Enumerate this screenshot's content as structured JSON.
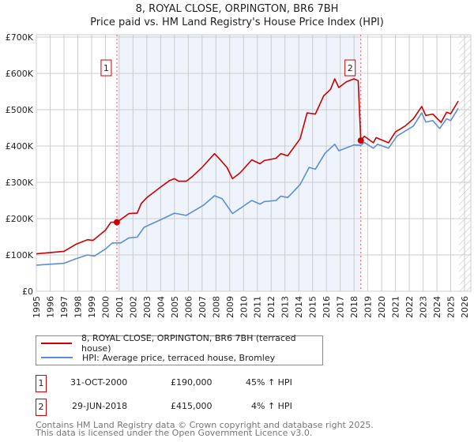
{
  "title": "8, ROYAL CLOSE, ORPINGTON, BR6 7BH",
  "subtitle": "Price paid vs. HM Land Registry's House Price Index (HPI)",
  "colors": {
    "property": "#cc0000",
    "hpi": "#5b8fd1",
    "shade": "#eef3fc",
    "grid": "#cccccc"
  },
  "chart_data": {
    "type": "line",
    "title": "8, ROYAL CLOSE, ORPINGTON, BR6 7BH — Price paid vs. HM Land Registry's House Price Index (HPI)",
    "xlim": [
      1995,
      2026
    ],
    "ylim": [
      0,
      700000
    ],
    "y_ticks": [
      0,
      100000,
      200000,
      300000,
      400000,
      500000,
      600000,
      700000
    ],
    "y_tick_labels": [
      "£0",
      "£100K",
      "£200K",
      "£300K",
      "£400K",
      "£500K",
      "£600K",
      "£700K"
    ],
    "x_ticks": [
      "1995",
      "1996",
      "1997",
      "1998",
      "1999",
      "2000",
      "2001",
      "2002",
      "2003",
      "2004",
      "2005",
      "2006",
      "2007",
      "2008",
      "2009",
      "2010",
      "2011",
      "2012",
      "2013",
      "2014",
      "2015",
      "2016",
      "2017",
      "2018",
      "2019",
      "2020",
      "2021",
      "2022",
      "2023",
      "2024",
      "2025",
      "2026"
    ],
    "grid": true,
    "legend_placement": "below",
    "shaded_range": [
      2000.83,
      2018.49
    ],
    "hatched_from": 2025.6,
    "series": [
      {
        "name": "8, ROYAL CLOSE, ORPINGTON, BR6 7BH (terraced house)",
        "x": [
          1995,
          1997,
          1997.9,
          1998.7,
          1999.1,
          2000,
          2000.4,
          2000.83,
          2001.7,
          2002.3,
          2002.6,
          2003,
          2004,
          2004.65,
          2005,
          2005.3,
          2005.85,
          2006.3,
          2007,
          2007.9,
          2008.2,
          2008.8,
          2009.2,
          2009.75,
          2010.6,
          2011.2,
          2011.5,
          2012.35,
          2012.7,
          2013.2,
          2014.1,
          2014.6,
          2015.2,
          2015.8,
          2016.3,
          2016.6,
          2016.9,
          2017.45,
          2018,
          2018.3,
          2018.49,
          2018.75,
          2019.4,
          2019.6,
          2020.5,
          2021,
          2021.7,
          2022.3,
          2022.9,
          2023.2,
          2023.7,
          2024.3,
          2024.7,
          2025,
          2025.55
        ],
        "y": [
          103000,
          110000,
          130000,
          142000,
          140000,
          168000,
          190000,
          190000,
          214000,
          215000,
          242000,
          258000,
          287000,
          305000,
          310000,
          303000,
          303000,
          316000,
          341000,
          379000,
          367000,
          341000,
          310000,
          326000,
          362000,
          351000,
          360000,
          366000,
          379000,
          373000,
          420000,
          491000,
          488000,
          538000,
          556000,
          585000,
          561000,
          577000,
          585000,
          580000,
          415000,
          427000,
          409000,
          423000,
          409000,
          439000,
          455000,
          475000,
          509000,
          484000,
          488000,
          465000,
          493000,
          489000,
          524000
        ]
      },
      {
        "name": "HPI: Average price, terraced house, Bromley",
        "x": [
          1995,
          1997,
          1997.9,
          1998.7,
          1999.2,
          2000,
          2000.5,
          2001.1,
          2001.7,
          2002.3,
          2002.8,
          2004,
          2005,
          2005.85,
          2007.1,
          2007.9,
          2008.45,
          2009.2,
          2010.6,
          2011.2,
          2011.5,
          2012.35,
          2012.7,
          2013.2,
          2014.1,
          2014.75,
          2015.2,
          2015.9,
          2016.6,
          2016.9,
          2018,
          2018.5,
          2018.75,
          2019.4,
          2019.7,
          2020.5,
          2021.1,
          2022.3,
          2022.9,
          2023.2,
          2023.7,
          2024.2,
          2024.7,
          2025,
          2025.55
        ],
        "y": [
          72000,
          77000,
          90000,
          100000,
          97000,
          116000,
          133000,
          133000,
          147000,
          149000,
          176000,
          197000,
          215000,
          209000,
          237000,
          263000,
          255000,
          214000,
          250000,
          240000,
          247000,
          250000,
          262000,
          258000,
          294000,
          341000,
          336000,
          380000,
          405000,
          387000,
          403000,
          402000,
          410000,
          394000,
          405000,
          394000,
          427000,
          455000,
          491000,
          466000,
          470000,
          448000,
          475000,
          470000,
          504000
        ]
      }
    ],
    "annotations": [
      {
        "label": "1",
        "x": 2000.83,
        "y": 190000
      },
      {
        "label": "2",
        "x": 2018.49,
        "y": 415000
      }
    ]
  },
  "legend": {
    "property": "8, ROYAL CLOSE, ORPINGTON, BR6 7BH (terraced house)",
    "hpi": "HPI: Average price, terraced house, Bromley"
  },
  "sales": [
    {
      "num": "1",
      "date": "31-OCT-2000",
      "price": "£190,000",
      "hpi": "45% ↑ HPI"
    },
    {
      "num": "2",
      "date": "29-JUN-2018",
      "price": "£415,000",
      "hpi": "4% ↑ HPI"
    }
  ],
  "footer": {
    "line1": "Contains HM Land Registry data © Crown copyright and database right 2025.",
    "line2": "This data is licensed under the Open Government Licence v3.0."
  }
}
